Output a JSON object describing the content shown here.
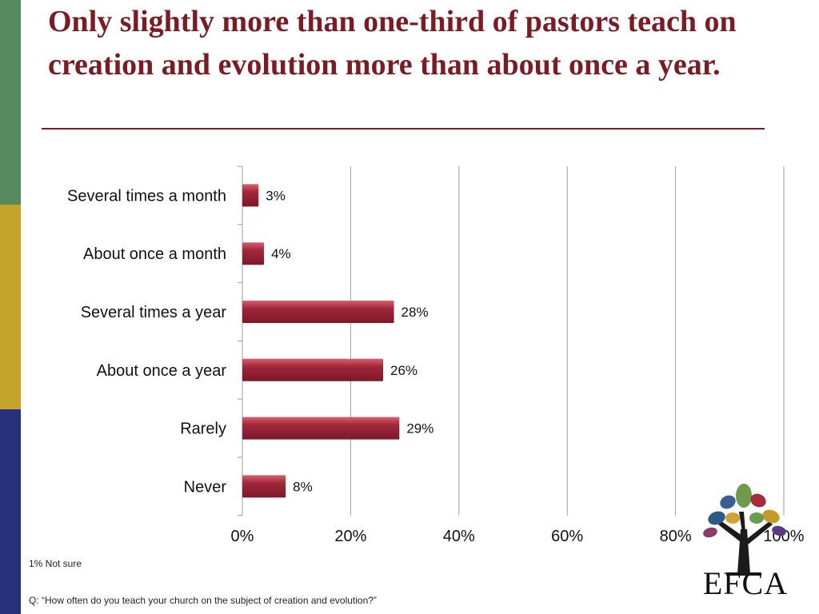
{
  "title": "Only slightly more than one-third of pastors teach on creation and evolution more than about once a year.",
  "colors": {
    "bar": "#a1283a",
    "title": "#7a1c24",
    "grid": "#9e9e9e"
  },
  "chart_data": {
    "type": "bar",
    "orientation": "horizontal",
    "categories": [
      "Several times a month",
      "About once a month",
      "Several times a year",
      "About once a year",
      "Rarely",
      "Never"
    ],
    "values": [
      3,
      4,
      28,
      26,
      29,
      8
    ],
    "value_labels": [
      "3%",
      "4%",
      "28%",
      "26%",
      "29%",
      "8%"
    ],
    "xlim": [
      0,
      100
    ],
    "x_ticks": [
      0,
      20,
      40,
      60,
      80,
      100
    ],
    "x_tick_labels": [
      "0%",
      "20%",
      "40%",
      "60%",
      "80%",
      "100%"
    ],
    "grid": true,
    "xlabel": "",
    "ylabel": ""
  },
  "footnotes": {
    "not_sure": "1% Not sure",
    "question": "Q: “How often do you teach your church on the subject of creation and evolution?”"
  },
  "logo": {
    "text": "EFCA"
  }
}
